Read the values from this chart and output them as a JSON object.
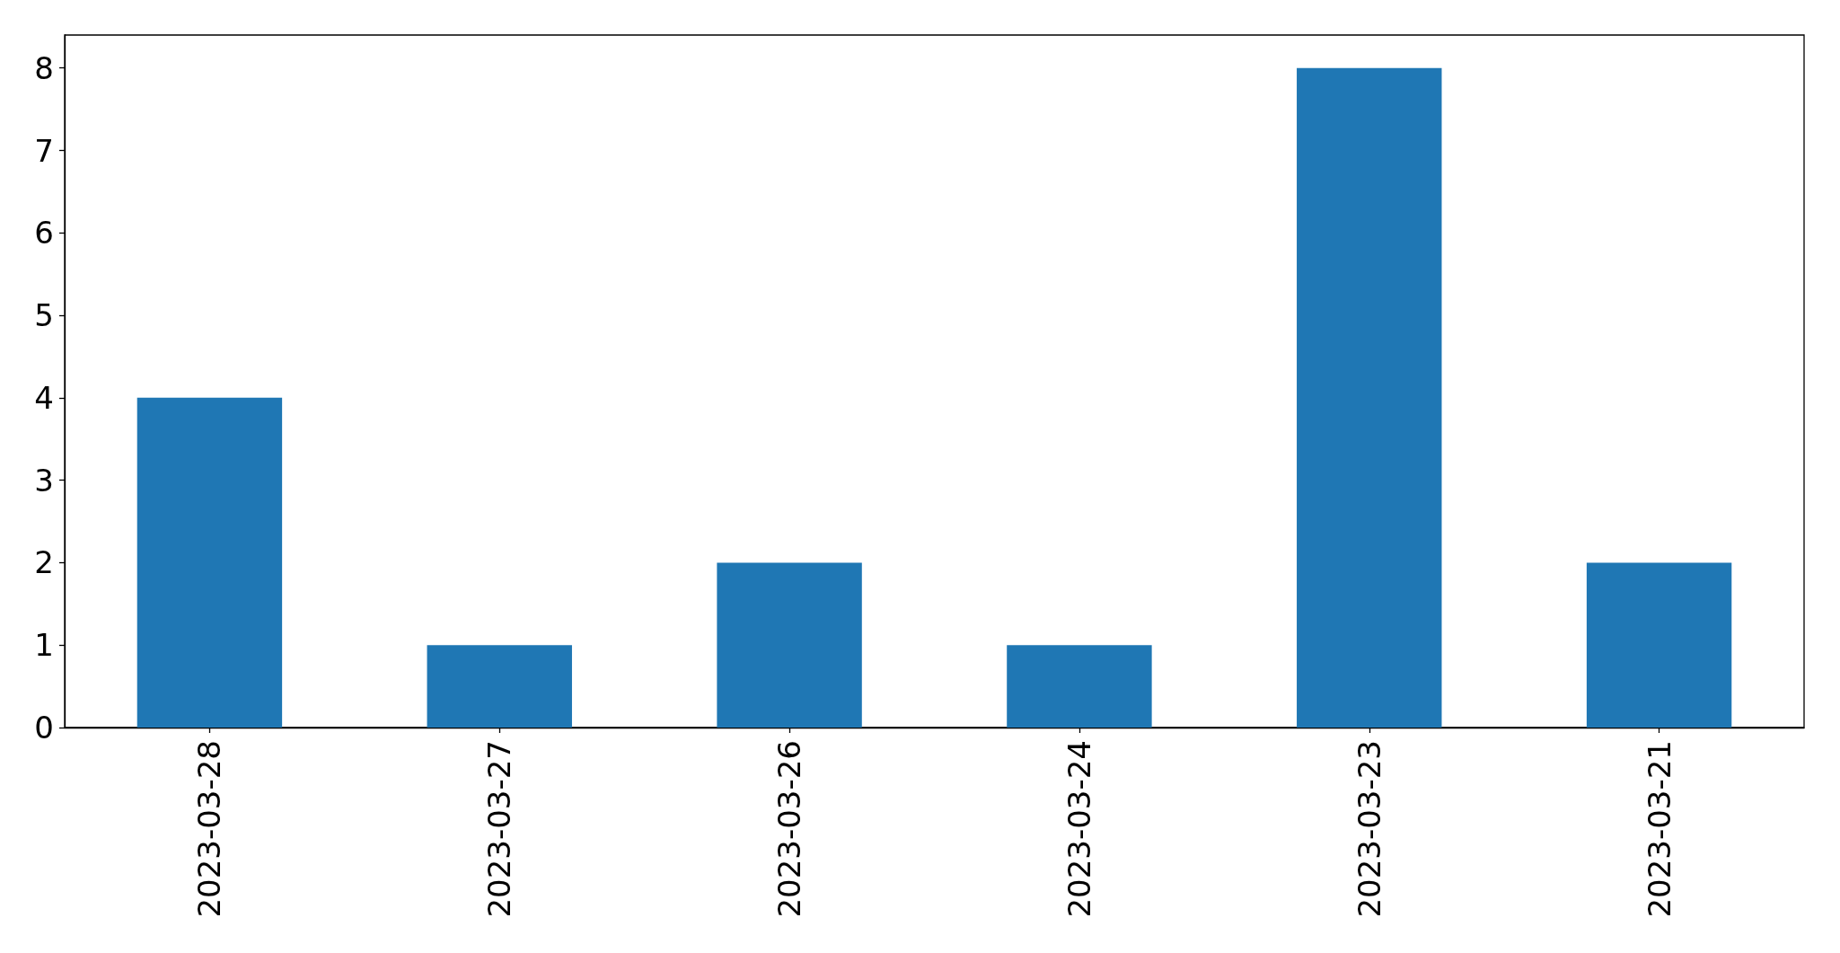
{
  "chart_data": {
    "type": "bar",
    "categories": [
      "2023-03-28",
      "2023-03-27",
      "2023-03-26",
      "2023-03-24",
      "2023-03-23",
      "2023-03-21"
    ],
    "values": [
      4,
      1,
      2,
      1,
      8,
      2
    ],
    "color": "#1f77b4",
    "ylim": [
      0,
      8.4
    ],
    "yticks": [
      0,
      1,
      2,
      3,
      4,
      5,
      6,
      7,
      8
    ],
    "grid": false
  }
}
